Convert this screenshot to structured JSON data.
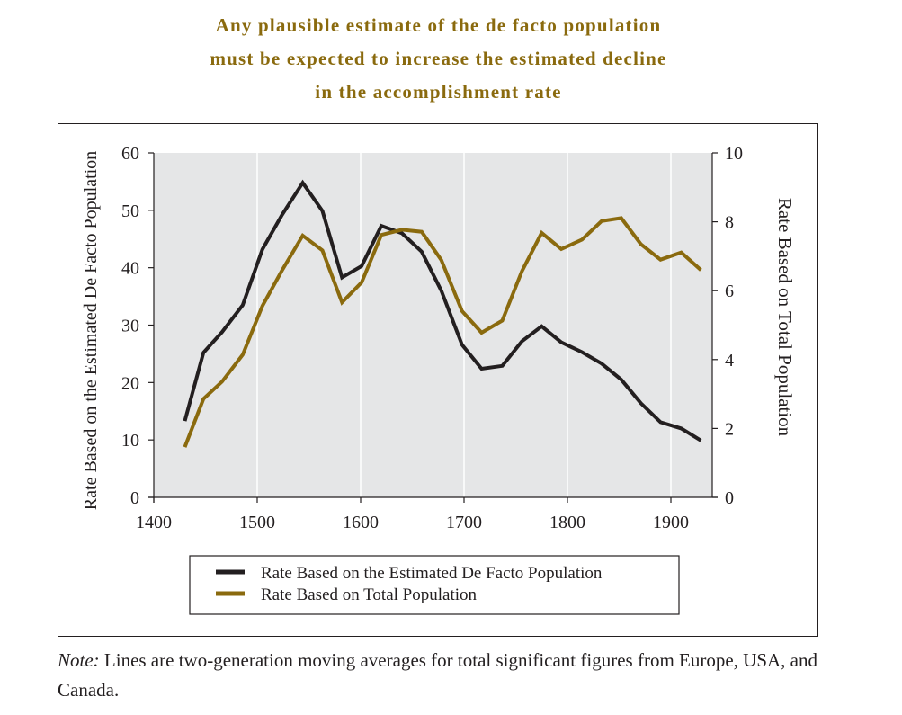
{
  "title_lines": [
    "Any plausible estimate of the de facto population",
    "must be expected to increase the estimated decline",
    "in the accomplishment rate"
  ],
  "colors": {
    "title": "#8a6a0e",
    "series_defacto": "#231f20",
    "series_total": "#8a6a0e",
    "plot_background": "#e5e6e7",
    "gridline": "#ffffff"
  },
  "chart_data": {
    "type": "line",
    "xlabel": "",
    "ylabel": "Rate Based on the Estimated De Facto Population",
    "ylabel_right": "Rate Based on Total Population",
    "xlim": [
      1400,
      1940
    ],
    "ylim": [
      0,
      60
    ],
    "ylim_right": [
      0,
      10
    ],
    "x_ticks": [
      1400,
      1500,
      1600,
      1700,
      1800,
      1900
    ],
    "x_tick_labels": [
      "1400",
      "1500",
      "1600",
      "1700",
      "1800",
      "1900"
    ],
    "y_ticks": [
      0,
      10,
      20,
      30,
      40,
      50,
      60
    ],
    "y_tick_labels": [
      "0",
      "10",
      "20",
      "30",
      "40",
      "50",
      "60"
    ],
    "y_right_ticks": [
      0,
      2,
      4,
      6,
      8,
      10
    ],
    "y_right_tick_labels": [
      "0",
      "2",
      "4",
      "6",
      "8",
      "10"
    ],
    "grid": "vertical",
    "legend_position": "bottom",
    "series": [
      {
        "name": "Rate Based on the Estimated De Facto Population",
        "axis": "left",
        "color": "#231f20",
        "x": [
          1430,
          1448,
          1466,
          1486,
          1505,
          1524,
          1544,
          1563,
          1582,
          1601,
          1620,
          1640,
          1659,
          1678,
          1698,
          1717,
          1737,
          1756,
          1775,
          1794,
          1814,
          1833,
          1852,
          1871,
          1890,
          1910,
          1929
        ],
        "y": [
          13.3,
          25.2,
          28.8,
          33.5,
          43.2,
          49.2,
          54.8,
          49.9,
          38.3,
          40.3,
          47.3,
          46.0,
          42.8,
          36.0,
          26.6,
          22.4,
          22.9,
          27.2,
          29.8,
          27.0,
          25.3,
          23.3,
          20.5,
          16.4,
          13.1,
          12.0,
          9.9
        ]
      },
      {
        "name": "Rate Based on Total Population",
        "axis": "right",
        "color": "#8a6a0e",
        "x": [
          1430,
          1448,
          1466,
          1486,
          1505,
          1524,
          1544,
          1563,
          1582,
          1601,
          1620,
          1640,
          1659,
          1678,
          1698,
          1717,
          1737,
          1756,
          1775,
          1794,
          1814,
          1833,
          1852,
          1871,
          1890,
          1910,
          1929
        ],
        "y": [
          1.46,
          2.86,
          3.36,
          4.14,
          5.56,
          6.59,
          7.6,
          7.17,
          5.66,
          6.24,
          7.62,
          7.77,
          7.71,
          6.89,
          5.41,
          4.78,
          5.13,
          6.57,
          7.68,
          7.21,
          7.48,
          8.02,
          8.11,
          7.35,
          6.9,
          7.11,
          6.6
        ]
      }
    ]
  },
  "note": {
    "label": "Note:",
    "text": " Lines are two-generation moving averages for total significant figures from Europe, USA, and Canada."
  }
}
